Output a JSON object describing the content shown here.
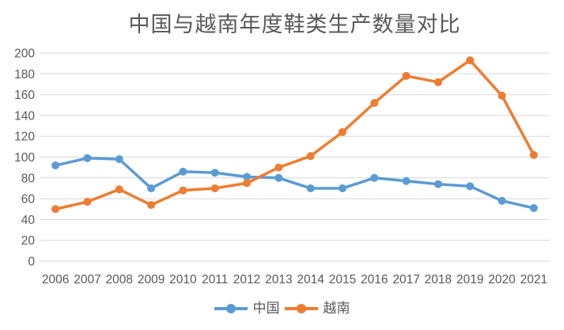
{
  "title": "中国与越南年度鞋类生产数量对比",
  "chart_data": {
    "type": "line",
    "title": "中国与越南年度鞋类生产数量对比",
    "xlabel": "",
    "ylabel": "",
    "categories": [
      "2006",
      "2007",
      "2008",
      "2009",
      "2010",
      "2011",
      "2012",
      "2013",
      "2014",
      "2015",
      "2016",
      "2017",
      "2018",
      "2019",
      "2020",
      "2021"
    ],
    "series": [
      {
        "name": "中国",
        "color": "#5B9BD5",
        "values": [
          92,
          99,
          98,
          70,
          86,
          85,
          81,
          80,
          70,
          70,
          80,
          77,
          74,
          72,
          58,
          51
        ]
      },
      {
        "name": "越南",
        "color": "#ED7D31",
        "values": [
          50,
          57,
          69,
          54,
          68,
          70,
          75,
          90,
          101,
          124,
          152,
          178,
          172,
          193,
          159,
          102
        ]
      }
    ],
    "ylim": [
      0,
      200
    ],
    "yticks": [
      0,
      20,
      40,
      60,
      80,
      100,
      120,
      140,
      160,
      180,
      200
    ],
    "grid": "horizontal",
    "legend_position": "bottom",
    "marker": "circle"
  },
  "colors": {
    "china_series": "#5B9BD5",
    "vietnam_series": "#ED7D31",
    "gridline": "#D9D9D9",
    "axis_text": "#595959",
    "title_text": "#595959",
    "background": "#FFFFFF"
  }
}
